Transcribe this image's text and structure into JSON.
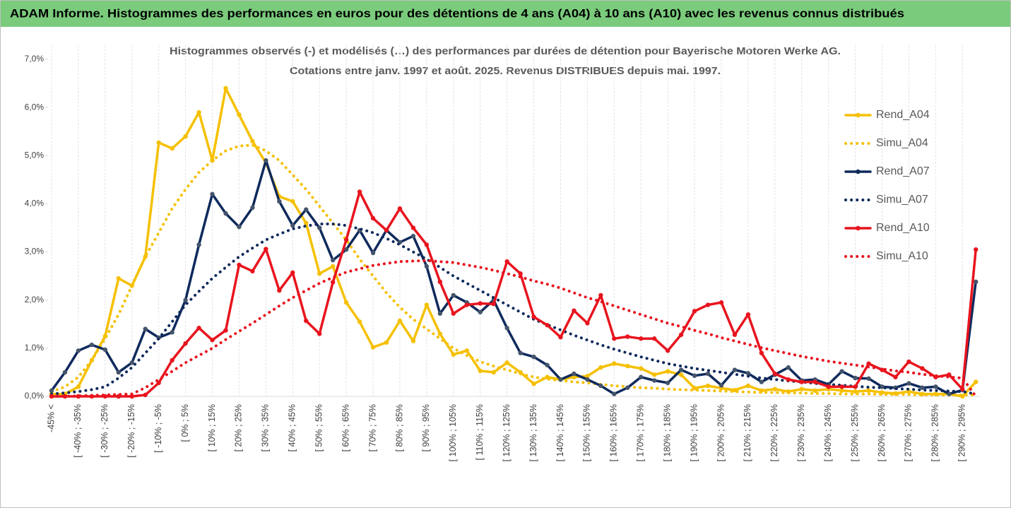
{
  "chart_data": {
    "type": "line",
    "banner": "ADAM Informe. Histogrammes des performances en euros pour des détentions de 4 ans (A04) à 10 ans (A10) avec les revenus connus distribués",
    "title": "Histogrammes observés (-) et modélisés (…) des performances par durées de détention pour Bayerische Motoren Werke AG.",
    "subtitle": "Cotations entre janv. 1997 et août. 2025. Revenus DISTRIBUES depuis mai. 1997.",
    "categories": [
      "-45% <",
      null,
      "[ -40% ; -35%",
      null,
      "[ -30% ; -25%",
      null,
      "[ -20% ; -15%",
      null,
      "[ -10% ; -5%",
      null,
      "[ 0% ; 5%",
      null,
      "[ 10% ; 15%",
      null,
      "[ 20% ; 25%",
      null,
      "[ 30% ; 35%",
      null,
      "[ 40% ; 45%",
      null,
      "[ 50% ; 55%",
      null,
      "[ 60% ; 65%",
      null,
      "[ 70% ; 75%",
      null,
      "[ 80% ; 85%",
      null,
      "[ 90% ; 95%",
      null,
      "[ 100% ; 105%",
      null,
      "[ 110% ; 115%",
      null,
      "[ 120% ; 125%",
      null,
      "[ 130% ; 135%",
      null,
      "[ 140% ; 145%",
      null,
      "[ 150% ; 155%",
      null,
      "[ 160% ; 165%",
      null,
      "[ 170% ; 175%",
      null,
      "[ 180% ; 185%",
      null,
      "[ 190% ; 195%",
      null,
      "[ 200% ; 205%",
      null,
      "[ 210% ; 215%",
      null,
      "[ 220% ; 225%",
      null,
      "[ 230% ; 235%",
      null,
      "[ 240% ; 245%",
      null,
      "[ 250% ; 255%",
      null,
      "[ 260% ; 265%",
      null,
      "[ 270% ; 275%",
      null,
      "[ 280% ; 285%",
      null,
      "[ 290% ; 295%",
      null
    ],
    "ylim": [
      0,
      7
    ],
    "yticks": [
      {
        "value": 0,
        "label": "0,0%"
      },
      {
        "value": 1,
        "label": "1,0%"
      },
      {
        "value": 2,
        "label": "2,0%"
      },
      {
        "value": 3,
        "label": "3,0%"
      },
      {
        "value": 4,
        "label": "4,0%"
      },
      {
        "value": 5,
        "label": "5,0%"
      },
      {
        "value": 6,
        "label": "6,0%"
      },
      {
        "value": 7,
        "label": "7,0%"
      }
    ],
    "xgrid": true,
    "legend": "right",
    "series": [
      {
        "name": "Rend_A04",
        "color": "#f5c000",
        "line_style": "solid",
        "markers": true,
        "values": [
          0.05,
          0.05,
          0.2,
          0.75,
          1.25,
          2.45,
          2.3,
          2.9,
          5.27,
          5.15,
          5.4,
          5.9,
          4.9,
          6.4,
          5.85,
          5.3,
          4.85,
          4.15,
          4.05,
          3.6,
          2.55,
          2.7,
          1.95,
          1.55,
          1.02,
          1.12,
          1.57,
          1.15,
          1.9,
          1.3,
          0.87,
          0.95,
          0.53,
          0.5,
          0.7,
          0.5,
          0.26,
          0.4,
          0.35,
          0.4,
          0.42,
          0.6,
          0.68,
          0.63,
          0.58,
          0.45,
          0.52,
          0.45,
          0.17,
          0.22,
          0.17,
          0.13,
          0.22,
          0.12,
          0.15,
          0.1,
          0.15,
          0.12,
          0.15,
          0.12,
          0.1,
          0.12,
          0.08,
          0.06,
          0.1,
          0.05,
          0.05,
          0.05,
          0.0,
          0.3
        ]
      },
      {
        "name": "Simu_A04",
        "color": "#f5c000",
        "line_style": "dotted",
        "markers": false,
        "values": [
          0.1,
          0.2,
          0.4,
          0.75,
          1.2,
          1.7,
          2.3,
          2.9,
          3.4,
          3.9,
          4.3,
          4.65,
          4.9,
          5.1,
          5.2,
          5.22,
          5.1,
          4.9,
          4.6,
          4.3,
          3.95,
          3.6,
          3.25,
          2.85,
          2.5,
          2.15,
          1.85,
          1.6,
          1.4,
          1.2,
          1.0,
          0.85,
          0.72,
          0.63,
          0.55,
          0.47,
          0.4,
          0.36,
          0.33,
          0.3,
          0.28,
          0.25,
          0.22,
          0.2,
          0.18,
          0.17,
          0.15,
          0.14,
          0.13,
          0.12,
          0.11,
          0.1,
          0.09,
          0.08,
          0.08,
          0.07,
          0.07,
          0.06,
          0.06,
          0.05,
          0.05,
          0.05,
          0.04,
          0.04,
          0.04,
          0.03,
          0.03,
          0.03,
          0.03,
          0.03
        ]
      },
      {
        "name": "Rend_A07",
        "color": "#0f2a5c",
        "line_style": "solid",
        "markers": true,
        "values": [
          0.12,
          0.5,
          0.95,
          1.07,
          0.97,
          0.5,
          0.7,
          1.4,
          1.22,
          1.33,
          2.0,
          3.15,
          4.2,
          3.8,
          3.52,
          3.92,
          4.9,
          4.05,
          3.55,
          3.88,
          3.5,
          2.83,
          3.05,
          3.45,
          2.98,
          3.45,
          3.2,
          3.33,
          2.7,
          1.72,
          2.1,
          1.95,
          1.75,
          2.0,
          1.42,
          0.9,
          0.82,
          0.65,
          0.35,
          0.47,
          0.35,
          0.22,
          0.05,
          0.18,
          0.4,
          0.33,
          0.28,
          0.55,
          0.43,
          0.47,
          0.23,
          0.55,
          0.48,
          0.3,
          0.45,
          0.6,
          0.33,
          0.35,
          0.25,
          0.52,
          0.38,
          0.37,
          0.2,
          0.18,
          0.27,
          0.18,
          0.2,
          0.05,
          0.13,
          2.38
        ]
      },
      {
        "name": "Simu_A07",
        "color": "#0f2a5c",
        "line_style": "dotted",
        "markers": false,
        "values": [
          0.05,
          0.07,
          0.1,
          0.14,
          0.2,
          0.38,
          0.6,
          0.9,
          1.2,
          1.55,
          1.9,
          2.18,
          2.45,
          2.68,
          2.9,
          3.08,
          3.25,
          3.37,
          3.48,
          3.54,
          3.58,
          3.58,
          3.55,
          3.48,
          3.4,
          3.28,
          3.15,
          3.0,
          2.85,
          2.68,
          2.5,
          2.35,
          2.2,
          2.05,
          1.9,
          1.75,
          1.6,
          1.49,
          1.38,
          1.27,
          1.17,
          1.07,
          0.98,
          0.9,
          0.82,
          0.75,
          0.68,
          0.63,
          0.58,
          0.54,
          0.5,
          0.46,
          0.42,
          0.38,
          0.35,
          0.32,
          0.3,
          0.27,
          0.25,
          0.23,
          0.21,
          0.19,
          0.18,
          0.16,
          0.15,
          0.13,
          0.12,
          0.11,
          0.1,
          0.05
        ]
      },
      {
        "name": "Rend_A10",
        "color": "#e8141e",
        "line_style": "solid",
        "markers": true,
        "values": [
          0,
          0,
          0,
          0,
          0,
          0,
          0,
          0.03,
          0.28,
          0.75,
          1.1,
          1.42,
          1.17,
          1.37,
          2.73,
          2.6,
          3.06,
          2.2,
          2.57,
          1.57,
          1.3,
          2.37,
          3.25,
          4.25,
          3.7,
          3.45,
          3.9,
          3.5,
          3.15,
          2.38,
          1.72,
          1.9,
          1.93,
          1.92,
          2.8,
          2.55,
          1.65,
          1.48,
          1.23,
          1.78,
          1.52,
          2.1,
          1.2,
          1.24,
          1.2,
          1.2,
          0.95,
          1.28,
          1.77,
          1.9,
          1.95,
          1.28,
          1.7,
          0.9,
          0.47,
          0.35,
          0.3,
          0.3,
          0.2,
          0.2,
          0.2,
          0.68,
          0.55,
          0.4,
          0.72,
          0.58,
          0.4,
          0.45,
          0.15,
          3.05
        ]
      },
      {
        "name": "Simu_A10",
        "color": "#e8141e",
        "line_style": "dotted",
        "markers": false,
        "values": [
          0,
          0,
          0.01,
          0.02,
          0.03,
          0.04,
          0.05,
          0.18,
          0.35,
          0.52,
          0.7,
          0.85,
          1.0,
          1.18,
          1.35,
          1.52,
          1.7,
          1.88,
          2.05,
          2.2,
          2.35,
          2.47,
          2.58,
          2.65,
          2.72,
          2.76,
          2.8,
          2.81,
          2.82,
          2.8,
          2.78,
          2.73,
          2.68,
          2.62,
          2.55,
          2.48,
          2.4,
          2.33,
          2.25,
          2.15,
          2.05,
          1.97,
          1.88,
          1.79,
          1.7,
          1.61,
          1.52,
          1.45,
          1.37,
          1.3,
          1.22,
          1.15,
          1.08,
          1.01,
          0.95,
          0.89,
          0.83,
          0.78,
          0.73,
          0.69,
          0.65,
          0.61,
          0.57,
          0.53,
          0.5,
          0.46,
          0.43,
          0.4,
          0.38,
          0.0
        ]
      }
    ]
  }
}
